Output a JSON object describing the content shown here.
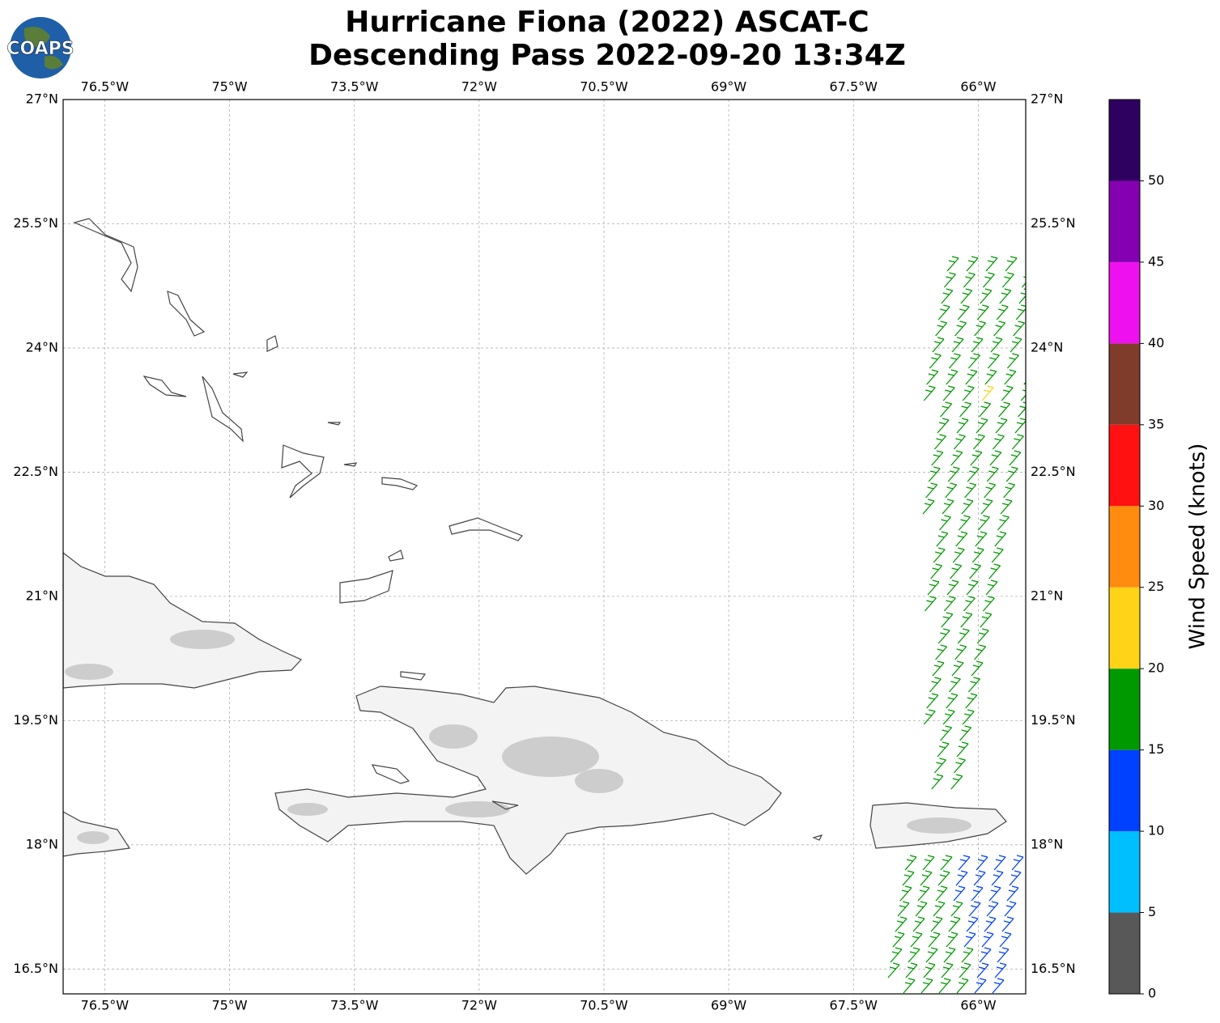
{
  "header": {
    "logo": "COAPS",
    "title_lines": [
      "Hurricane Fiona (2022) ASCAT-C",
      "Descending Pass 2022-09-20 13:34Z"
    ]
  },
  "map": {
    "xlim": [
      -77,
      -65.43
    ],
    "ylim": [
      16.2,
      27
    ],
    "lon_ticks": [
      {
        "value": -76.5,
        "label": "76.5°W"
      },
      {
        "value": -75,
        "label": "75°W"
      },
      {
        "value": -73.5,
        "label": "73.5°W"
      },
      {
        "value": -72,
        "label": "72°W"
      },
      {
        "value": -70.5,
        "label": "70.5°W"
      },
      {
        "value": -69,
        "label": "69°W"
      },
      {
        "value": -67.5,
        "label": "67.5°W"
      },
      {
        "value": -66,
        "label": "66°W"
      }
    ],
    "lat_ticks": [
      {
        "value": 27,
        "label": "27°N"
      },
      {
        "value": 25.5,
        "label": "25.5°N"
      },
      {
        "value": 24,
        "label": "24°N"
      },
      {
        "value": 22.5,
        "label": "22.5°N"
      },
      {
        "value": 21,
        "label": "21°N"
      },
      {
        "value": 19.5,
        "label": "19.5°N"
      },
      {
        "value": 18,
        "label": "18°N"
      },
      {
        "value": 16.5,
        "label": "16.5°N"
      }
    ]
  },
  "colorbar": {
    "label": "Wind Speed (knots)",
    "lim": [
      0,
      55
    ],
    "ticks": [
      0,
      5,
      10,
      15,
      20,
      25,
      30,
      35,
      40,
      45,
      50
    ],
    "colors": [
      "#585858",
      "#00bfff",
      "#0040ff",
      "#009900",
      "#ffd317",
      "#ff8c0f",
      "#ff1111",
      "#803c2a",
      "#ee10ee",
      "#8400b0",
      "#2e0060"
    ]
  }
}
